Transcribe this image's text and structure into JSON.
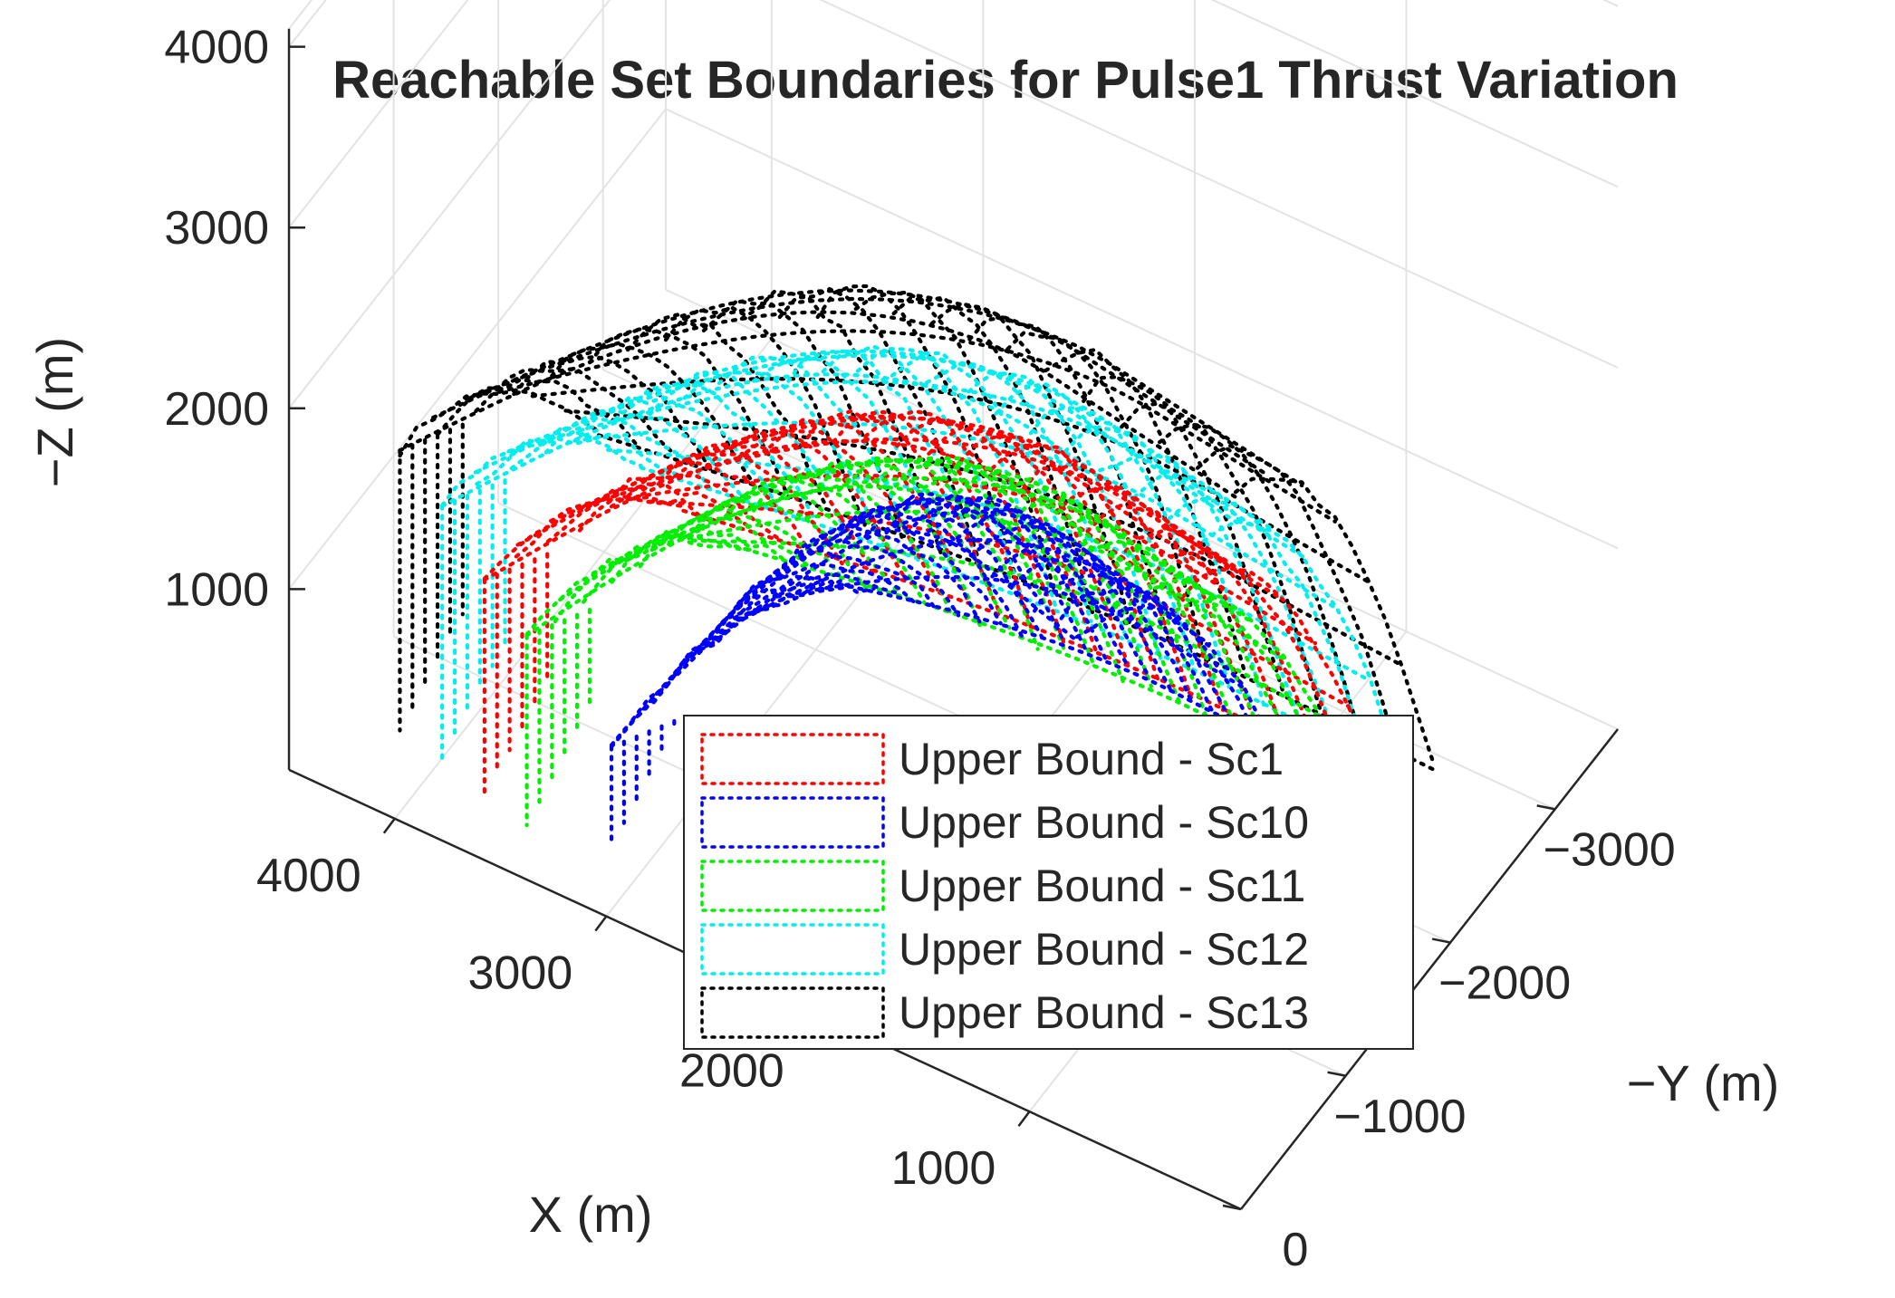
{
  "chart_data": {
    "type": "scatter",
    "projection": "3d",
    "title": "Reachable Set Boundaries for Pulse1 Thrust Variation",
    "xlabel": "X (m)",
    "ylabel": "−Y (m)",
    "zlabel": "−Z (m)",
    "xlim": [
      0,
      4500
    ],
    "ylim": [
      0,
      -3600
    ],
    "zlim": [
      0,
      4100
    ],
    "x_ticks": [
      "4000",
      "3000",
      "2000",
      "1000"
    ],
    "y_ticks": [
      "0",
      "−1000",
      "−2000",
      "−3000"
    ],
    "z_ticks": [
      "4000",
      "3000",
      "2000",
      "1000"
    ],
    "grid": true,
    "legend_position": "bottom-center",
    "line_style": "dotted",
    "series": [
      {
        "name": "Upper Bound - Sc1",
        "color": "#ff0000",
        "apex_z": 3300,
        "near_z": 1400,
        "min_z": 200
      },
      {
        "name": "Upper Bound - Sc10",
        "color": "#0000ff",
        "apex_z": 2800,
        "near_z": 800,
        "min_z": 250
      },
      {
        "name": "Upper Bound - Sc11",
        "color": "#00ee00",
        "apex_z": 3050,
        "near_z": 1200,
        "min_z": 150
      },
      {
        "name": "Upper Bound - Sc12",
        "color": "#00eeee",
        "apex_z": 3650,
        "near_z": 1700,
        "min_z": 300
      },
      {
        "name": "Upper Bound - Sc13",
        "color": "#000000",
        "apex_z": 4000,
        "near_z": 1900,
        "min_z": 350
      }
    ]
  }
}
